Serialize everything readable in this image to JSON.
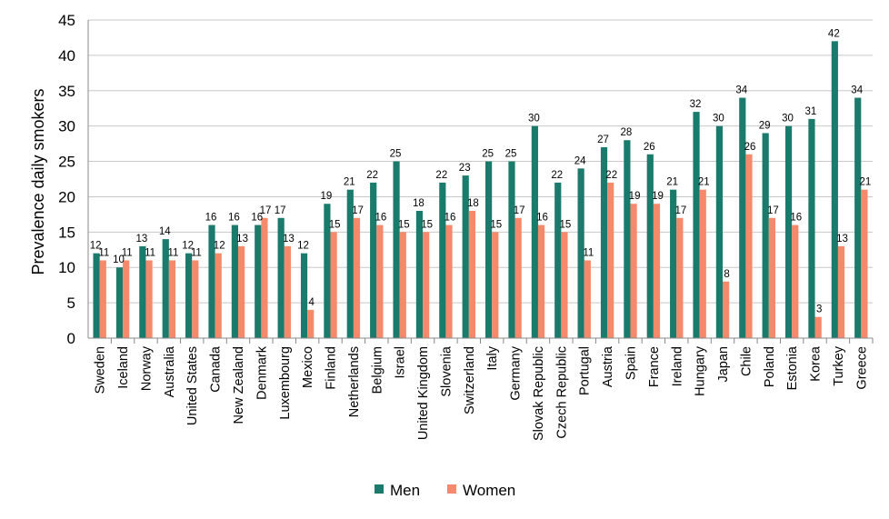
{
  "chart_data": {
    "type": "bar",
    "ylabel": "Prevalence daily smokers",
    "ylim": [
      0,
      45
    ],
    "ytick_step": 5,
    "grid": true,
    "legend_position": "bottom",
    "categories": [
      "Sweden",
      "Iceland",
      "Norway",
      "Australia",
      "United States",
      "Canada",
      "New Zealand",
      "Denmark",
      "Luxembourg",
      "Mexico",
      "Finland",
      "Netherlands",
      "Belgium",
      "Israel",
      "United Kingdom",
      "Slovenia",
      "Switzerland",
      "Italy",
      "Germany",
      "Slovak Republic",
      "Czech Republic",
      "Portugal",
      "Austria",
      "Spain",
      "France",
      "Ireland",
      "Hungary",
      "Japan",
      "Chile",
      "Poland",
      "Estonia",
      "Korea",
      "Turkey",
      "Greece"
    ],
    "series": [
      {
        "name": "Men",
        "color": "#1a7a6b",
        "values": [
          12,
          10,
          13,
          14,
          12,
          16,
          16,
          16,
          17,
          12,
          19,
          21,
          22,
          25,
          18,
          22,
          23,
          25,
          25,
          30,
          22,
          24,
          27,
          28,
          26,
          21,
          32,
          30,
          34,
          29,
          30,
          31,
          42,
          34
        ]
      },
      {
        "name": "Women",
        "color": "#f4896b",
        "values": [
          11,
          11,
          11,
          11,
          11,
          12,
          13,
          17,
          13,
          4,
          15,
          17,
          16,
          15,
          15,
          16,
          18,
          15,
          17,
          16,
          15,
          11,
          22,
          19,
          19,
          17,
          21,
          8,
          26,
          17,
          16,
          3,
          13,
          21
        ]
      }
    ]
  }
}
